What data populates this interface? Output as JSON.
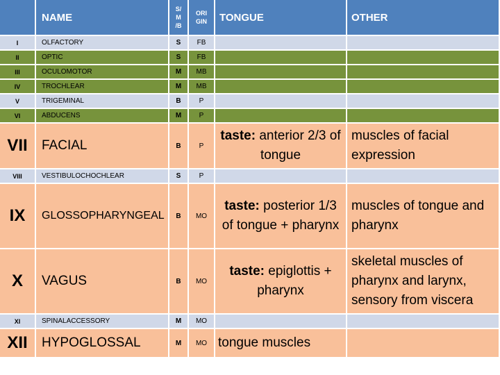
{
  "header": {
    "num": "",
    "name": "NAME",
    "smb": "S/\nM\n/B",
    "origin": "ORI\nGIN",
    "tongue": "TONGUE",
    "other": "OTHER"
  },
  "rows": [
    {
      "num": "I",
      "name": "OLFACTORY",
      "smb": "S",
      "origin": "FB",
      "tongue_label": "",
      "tongue_text": "",
      "other": ""
    },
    {
      "num": "II",
      "name": "OPTIC",
      "smb": "S",
      "origin": "FB",
      "tongue_label": "",
      "tongue_text": "",
      "other": ""
    },
    {
      "num": "III",
      "name": "OCULOMOTOR",
      "smb": "M",
      "origin": "MB",
      "tongue_label": "",
      "tongue_text": "",
      "other": ""
    },
    {
      "num": "IV",
      "name": "TROCHLEAR",
      "smb": "M",
      "origin": "MB",
      "tongue_label": "",
      "tongue_text": "",
      "other": ""
    },
    {
      "num": "V",
      "name": "TRIGEMINAL",
      "smb": "B",
      "origin": "P",
      "tongue_label": "",
      "tongue_text": "",
      "other": ""
    },
    {
      "num": "VI",
      "name": "ABDUCENS",
      "smb": "M",
      "origin": "P",
      "tongue_label": "",
      "tongue_text": "",
      "other": ""
    },
    {
      "num": "VII",
      "name": "FACIAL",
      "smb": "B",
      "origin": "P",
      "tongue_label": "taste:",
      "tongue_text": " anterior 2/3 of tongue",
      "other": "muscles of facial expression"
    },
    {
      "num": "VIII",
      "name": "VESTIBULOCHOCHLEAR",
      "smb": "S",
      "origin": "P",
      "tongue_label": "",
      "tongue_text": "",
      "other": ""
    },
    {
      "num": "IX",
      "name": "GLOSSOPHARYNGEAL",
      "smb": "B",
      "origin": "MO",
      "tongue_label": "taste:",
      "tongue_text": " posterior 1/3 of tongue + pharynx",
      "other": "muscles of tongue and pharynx"
    },
    {
      "num": "X",
      "name": "VAGUS",
      "smb": "B",
      "origin": "MO",
      "tongue_label": "taste:",
      "tongue_text": " epiglottis + pharynx",
      "other": "skeletal muscles of pharynx and larynx, sensory from viscera"
    },
    {
      "num": "XI",
      "name": "SPINALACCESSORY",
      "smb": "M",
      "origin": "MO",
      "tongue_label": "",
      "tongue_text": "",
      "other": ""
    },
    {
      "num": "XII",
      "name": "HYPOGLOSSAL",
      "smb": "M",
      "origin": "MO",
      "tongue_label": "",
      "tongue_text": "tongue muscles",
      "other": ""
    }
  ],
  "colors": {
    "header": "#4f81bd",
    "sensory_blue": "#d0d8e8",
    "motor_green": "#77933c",
    "highlight_orange": "#f9c09a"
  }
}
